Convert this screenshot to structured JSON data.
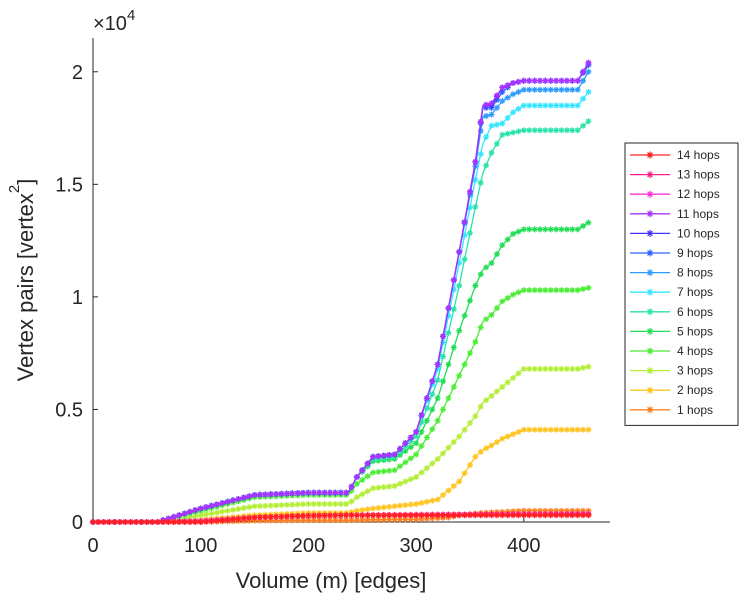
{
  "chart_data": {
    "type": "line",
    "xlabel": "Volume (m) [edges]",
    "ylabel": "Vertex pairs [vertex",
    "ylabel_superscript": "2",
    "ylabel_close": "]",
    "y_exponent_base": "×10",
    "y_exponent_power": "4",
    "xlim": [
      0,
      480
    ],
    "ylim": [
      0,
      21500
    ],
    "xticks": [
      0,
      100,
      200,
      300,
      400
    ],
    "xtick_labels": [
      "0",
      "100",
      "200",
      "300",
      "400"
    ],
    "yticks": [
      0,
      5000,
      10000,
      15000,
      20000
    ],
    "ytick_labels": [
      "0",
      "0.5",
      "1",
      "1.5",
      "2"
    ],
    "grid": false,
    "legend_position": "right",
    "series": [
      {
        "name": "14 hops",
        "color": "#ff2020",
        "points": [
          [
            0,
            0
          ],
          [
            50,
            0
          ],
          [
            100,
            0
          ],
          [
            150,
            200
          ],
          [
            200,
            280
          ],
          [
            240,
            300
          ],
          [
            260,
            300
          ],
          [
            300,
            300
          ],
          [
            330,
            300
          ],
          [
            360,
            300
          ],
          [
            400,
            300
          ],
          [
            420,
            300
          ],
          [
            460,
            300
          ]
        ]
      },
      {
        "name": "13 hops",
        "color": "#ff2090",
        "points": [
          [
            0,
            0
          ],
          [
            50,
            0
          ],
          [
            100,
            0
          ],
          [
            150,
            200
          ],
          [
            200,
            280
          ],
          [
            240,
            300
          ],
          [
            260,
            300
          ],
          [
            300,
            320
          ],
          [
            330,
            330
          ],
          [
            360,
            330
          ],
          [
            400,
            340
          ],
          [
            460,
            340
          ]
        ]
      },
      {
        "name": "12 hops",
        "color": "#ff33dd",
        "points": [
          [
            0,
            0
          ],
          [
            50,
            0
          ],
          [
            100,
            50
          ],
          [
            150,
            200
          ],
          [
            200,
            280
          ],
          [
            240,
            300
          ],
          [
            260,
            310
          ],
          [
            300,
            320
          ],
          [
            330,
            330
          ],
          [
            360,
            340
          ],
          [
            400,
            350
          ],
          [
            460,
            360
          ]
        ]
      },
      {
        "name": "11 hops",
        "color": "#aa33ff",
        "points": [
          [
            0,
            0
          ],
          [
            60,
            0
          ],
          [
            100,
            600
          ],
          [
            150,
            1200
          ],
          [
            200,
            1300
          ],
          [
            237,
            1300
          ],
          [
            245,
            2000
          ],
          [
            260,
            2900
          ],
          [
            280,
            3000
          ],
          [
            300,
            4000
          ],
          [
            320,
            7000
          ],
          [
            340,
            12000
          ],
          [
            355,
            16000
          ],
          [
            362,
            18500
          ],
          [
            370,
            18600
          ],
          [
            380,
            19300
          ],
          [
            390,
            19500
          ],
          [
            400,
            19600
          ],
          [
            450,
            19600
          ],
          [
            460,
            20400
          ]
        ]
      },
      {
        "name": "10 hops",
        "color": "#4433ff",
        "points": [
          [
            0,
            0
          ],
          [
            60,
            0
          ],
          [
            100,
            600
          ],
          [
            150,
            1200
          ],
          [
            200,
            1300
          ],
          [
            237,
            1300
          ],
          [
            245,
            2000
          ],
          [
            260,
            2900
          ],
          [
            280,
            3000
          ],
          [
            300,
            4000
          ],
          [
            320,
            7000
          ],
          [
            340,
            12000
          ],
          [
            355,
            16000
          ],
          [
            362,
            18500
          ],
          [
            370,
            18500
          ],
          [
            380,
            19300
          ],
          [
            390,
            19500
          ],
          [
            400,
            19600
          ],
          [
            450,
            19600
          ],
          [
            460,
            20400
          ]
        ]
      },
      {
        "name": "9 hops",
        "color": "#2f5fff",
        "points": [
          [
            0,
            0
          ],
          [
            60,
            0
          ],
          [
            100,
            600
          ],
          [
            150,
            1200
          ],
          [
            200,
            1300
          ],
          [
            237,
            1300
          ],
          [
            245,
            2000
          ],
          [
            260,
            2900
          ],
          [
            280,
            3000
          ],
          [
            300,
            4000
          ],
          [
            320,
            7000
          ],
          [
            340,
            12000
          ],
          [
            355,
            16000
          ],
          [
            362,
            18400
          ],
          [
            370,
            18400
          ],
          [
            380,
            19100
          ],
          [
            390,
            19500
          ],
          [
            400,
            19600
          ],
          [
            450,
            19600
          ],
          [
            460,
            20300
          ]
        ]
      },
      {
        "name": "8 hops",
        "color": "#2d9cff",
        "points": [
          [
            0,
            0
          ],
          [
            60,
            0
          ],
          [
            100,
            600
          ],
          [
            150,
            1200
          ],
          [
            200,
            1300
          ],
          [
            237,
            1300
          ],
          [
            245,
            2000
          ],
          [
            260,
            2900
          ],
          [
            280,
            3000
          ],
          [
            300,
            4000
          ],
          [
            320,
            7000
          ],
          [
            340,
            12000
          ],
          [
            355,
            15800
          ],
          [
            362,
            18000
          ],
          [
            370,
            18100
          ],
          [
            380,
            18700
          ],
          [
            390,
            19000
          ],
          [
            400,
            19200
          ],
          [
            450,
            19200
          ],
          [
            460,
            20000
          ]
        ]
      },
      {
        "name": "7 hops",
        "color": "#33e6ff",
        "points": [
          [
            0,
            0
          ],
          [
            60,
            0
          ],
          [
            100,
            600
          ],
          [
            150,
            1200
          ],
          [
            200,
            1300
          ],
          [
            237,
            1300
          ],
          [
            245,
            2000
          ],
          [
            260,
            2900
          ],
          [
            280,
            3000
          ],
          [
            300,
            4000
          ],
          [
            320,
            6800
          ],
          [
            340,
            11500
          ],
          [
            355,
            15200
          ],
          [
            362,
            16800
          ],
          [
            370,
            17600
          ],
          [
            380,
            17700
          ],
          [
            390,
            18200
          ],
          [
            400,
            18500
          ],
          [
            450,
            18500
          ],
          [
            460,
            19100
          ]
        ]
      },
      {
        "name": "6 hops",
        "color": "#29e3aa",
        "points": [
          [
            0,
            0
          ],
          [
            60,
            0
          ],
          [
            100,
            600
          ],
          [
            150,
            1200
          ],
          [
            200,
            1300
          ],
          [
            237,
            1300
          ],
          [
            245,
            2000
          ],
          [
            260,
            2800
          ],
          [
            280,
            2900
          ],
          [
            300,
            3800
          ],
          [
            320,
            6300
          ],
          [
            340,
            10500
          ],
          [
            355,
            14000
          ],
          [
            362,
            15500
          ],
          [
            370,
            16400
          ],
          [
            380,
            17200
          ],
          [
            390,
            17300
          ],
          [
            400,
            17400
          ],
          [
            450,
            17400
          ],
          [
            460,
            17800
          ]
        ]
      },
      {
        "name": "5 hops",
        "color": "#22dd55",
        "points": [
          [
            0,
            0
          ],
          [
            60,
            0
          ],
          [
            100,
            600
          ],
          [
            150,
            1200
          ],
          [
            200,
            1300
          ],
          [
            237,
            1300
          ],
          [
            245,
            2000
          ],
          [
            260,
            2700
          ],
          [
            280,
            2800
          ],
          [
            300,
            3500
          ],
          [
            320,
            5500
          ],
          [
            340,
            8500
          ],
          [
            355,
            10500
          ],
          [
            362,
            11200
          ],
          [
            370,
            11500
          ],
          [
            380,
            12300
          ],
          [
            390,
            12800
          ],
          [
            400,
            13000
          ],
          [
            450,
            13000
          ],
          [
            460,
            13300
          ]
        ]
      },
      {
        "name": "4 hops",
        "color": "#4aee33",
        "points": [
          [
            0,
            0
          ],
          [
            60,
            0
          ],
          [
            100,
            500
          ],
          [
            150,
            1100
          ],
          [
            200,
            1200
          ],
          [
            237,
            1200
          ],
          [
            245,
            1700
          ],
          [
            260,
            2200
          ],
          [
            280,
            2300
          ],
          [
            300,
            3000
          ],
          [
            320,
            4500
          ],
          [
            340,
            6500
          ],
          [
            355,
            8000
          ],
          [
            362,
            8900
          ],
          [
            370,
            9200
          ],
          [
            380,
            9800
          ],
          [
            390,
            10100
          ],
          [
            400,
            10300
          ],
          [
            450,
            10300
          ],
          [
            460,
            10400
          ]
        ]
      },
      {
        "name": "3 hops",
        "color": "#b2ee33",
        "points": [
          [
            0,
            0
          ],
          [
            70,
            0
          ],
          [
            100,
            300
          ],
          [
            150,
            700
          ],
          [
            200,
            800
          ],
          [
            237,
            800
          ],
          [
            245,
            1100
          ],
          [
            260,
            1500
          ],
          [
            280,
            1600
          ],
          [
            300,
            2000
          ],
          [
            320,
            2800
          ],
          [
            340,
            3800
          ],
          [
            355,
            4700
          ],
          [
            362,
            5300
          ],
          [
            370,
            5600
          ],
          [
            380,
            6000
          ],
          [
            390,
            6400
          ],
          [
            400,
            6800
          ],
          [
            450,
            6800
          ],
          [
            460,
            6900
          ]
        ]
      },
      {
        "name": "2 hops",
        "color": "#ffc41f",
        "points": [
          [
            0,
            0
          ],
          [
            80,
            0
          ],
          [
            100,
            100
          ],
          [
            150,
            300
          ],
          [
            200,
            400
          ],
          [
            237,
            400
          ],
          [
            245,
            500
          ],
          [
            260,
            600
          ],
          [
            280,
            700
          ],
          [
            300,
            800
          ],
          [
            320,
            1000
          ],
          [
            340,
            1800
          ],
          [
            355,
            2900
          ],
          [
            362,
            3200
          ],
          [
            370,
            3400
          ],
          [
            380,
            3700
          ],
          [
            390,
            3900
          ],
          [
            400,
            4100
          ],
          [
            450,
            4100
          ],
          [
            460,
            4100
          ]
        ]
      },
      {
        "name": "1 hops",
        "color": "#ff7f1f",
        "points": [
          [
            0,
            0
          ],
          [
            80,
            0
          ],
          [
            100,
            0
          ],
          [
            150,
            60
          ],
          [
            200,
            80
          ],
          [
            240,
            80
          ],
          [
            260,
            100
          ],
          [
            300,
            120
          ],
          [
            330,
            200
          ],
          [
            340,
            300
          ],
          [
            360,
            400
          ],
          [
            380,
            450
          ],
          [
            400,
            500
          ],
          [
            460,
            500
          ]
        ]
      }
    ]
  }
}
